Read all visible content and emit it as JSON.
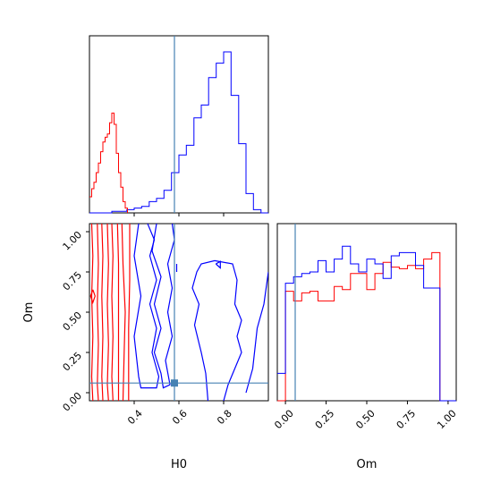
{
  "chart_data": {
    "type": "corner",
    "colors": {
      "series_a": "#ff0000",
      "series_b": "#0000ff",
      "truth": "#4682b4"
    },
    "truth": {
      "H0": 0.58,
      "Om": 0.06
    },
    "ranges": {
      "H0": [
        0.2,
        1.0
      ],
      "Om": [
        -0.05,
        1.05
      ]
    },
    "axes": {
      "H0": {
        "label": "H0",
        "ticks": [
          0.4,
          0.6,
          0.8
        ],
        "tick_labels": [
          "0.4",
          "0.6",
          "0.8"
        ]
      },
      "Om": {
        "label": "Om",
        "ticks": [
          0.0,
          0.25,
          0.5,
          0.75,
          1.0
        ],
        "tick_labels": [
          "0.00",
          "0.25",
          "0.50",
          "0.75",
          "1.00"
        ]
      }
    },
    "hist_H0": {
      "bin_edges": [
        0.2,
        0.233,
        0.267,
        0.3,
        0.333,
        0.367,
        0.4,
        0.433,
        0.467,
        0.5,
        0.533,
        0.567,
        0.6,
        0.633,
        0.667,
        0.7,
        0.733,
        0.767,
        0.8,
        0.833,
        0.867,
        0.9,
        0.933,
        0.967,
        1.0
      ],
      "series_a": [
        [
          0.2,
          0.1
        ],
        [
          0.21,
          0.15
        ],
        [
          0.22,
          0.19
        ],
        [
          0.23,
          0.25
        ],
        [
          0.24,
          0.31
        ],
        [
          0.25,
          0.38
        ],
        [
          0.26,
          0.44
        ],
        [
          0.27,
          0.47
        ],
        [
          0.28,
          0.49
        ],
        [
          0.29,
          0.56
        ],
        [
          0.3,
          0.62
        ],
        [
          0.31,
          0.55
        ],
        [
          0.32,
          0.37
        ],
        [
          0.33,
          0.25
        ],
        [
          0.34,
          0.16
        ],
        [
          0.35,
          0.07
        ],
        [
          0.36,
          0.03
        ],
        [
          0.37,
          0.0
        ]
      ],
      "series_b": [
        0.0,
        0.0,
        0.0,
        0.01,
        0.01,
        0.02,
        0.03,
        0.04,
        0.07,
        0.09,
        0.14,
        0.25,
        0.36,
        0.42,
        0.59,
        0.67,
        0.84,
        0.93,
        1.0,
        0.73,
        0.43,
        0.12,
        0.02,
        0.0
      ]
    },
    "hist_Om": {
      "bin_edges": [
        -0.05,
        0.0,
        0.05,
        0.1,
        0.15,
        0.2,
        0.25,
        0.3,
        0.35,
        0.4,
        0.45,
        0.5,
        0.55,
        0.6,
        0.65,
        0.7,
        0.75,
        0.8,
        0.85,
        0.9,
        0.95,
        1.0,
        1.05
      ],
      "series_a": [
        0.0,
        0.68,
        0.62,
        0.67,
        0.68,
        0.62,
        0.62,
        0.71,
        0.69,
        0.79,
        0.79,
        0.69,
        0.79,
        0.86,
        0.83,
        0.82,
        0.84,
        0.82,
        0.88,
        0.92,
        0.0,
        0.0
      ],
      "series_b": [
        0.17,
        0.73,
        0.77,
        0.79,
        0.8,
        0.87,
        0.8,
        0.88,
        0.96,
        0.85,
        0.8,
        0.88,
        0.85,
        0.76,
        0.9,
        0.92,
        0.92,
        0.84,
        0.7,
        0.7,
        0.0,
        0.0
      ]
    },
    "contours_a": [
      [
        [
          0.21,
          1.05
        ],
        [
          0.215,
          0.85
        ],
        [
          0.21,
          0.6
        ],
        [
          0.215,
          0.35
        ],
        [
          0.21,
          0.1
        ],
        [
          0.215,
          -0.05
        ]
      ],
      [
        [
          0.235,
          1.05
        ],
        [
          0.24,
          0.8
        ],
        [
          0.235,
          0.55
        ],
        [
          0.24,
          0.3
        ],
        [
          0.235,
          0.05
        ],
        [
          0.24,
          -0.05
        ]
      ],
      [
        [
          0.255,
          1.05
        ],
        [
          0.26,
          0.85
        ],
        [
          0.255,
          0.6
        ],
        [
          0.26,
          0.35
        ],
        [
          0.255,
          0.1
        ],
        [
          0.26,
          -0.05
        ]
      ],
      [
        [
          0.28,
          1.05
        ],
        [
          0.285,
          0.8
        ],
        [
          0.28,
          0.55
        ],
        [
          0.285,
          0.3
        ],
        [
          0.28,
          0.05
        ],
        [
          0.285,
          -0.05
        ]
      ],
      [
        [
          0.3,
          1.05
        ],
        [
          0.305,
          0.85
        ],
        [
          0.3,
          0.6
        ],
        [
          0.305,
          0.35
        ],
        [
          0.3,
          0.1
        ],
        [
          0.305,
          -0.05
        ]
      ],
      [
        [
          0.325,
          1.05
        ],
        [
          0.33,
          0.8
        ],
        [
          0.33,
          0.55
        ],
        [
          0.33,
          0.3
        ],
        [
          0.33,
          0.05
        ],
        [
          0.33,
          -0.05
        ]
      ],
      [
        [
          0.345,
          1.05
        ],
        [
          0.35,
          0.8
        ],
        [
          0.36,
          0.5
        ],
        [
          0.355,
          0.25
        ],
        [
          0.35,
          -0.05
        ]
      ],
      [
        [
          0.38,
          1.05
        ],
        [
          0.38,
          0.7
        ],
        [
          0.375,
          0.4
        ],
        [
          0.375,
          0.1
        ],
        [
          0.375,
          -0.05
        ]
      ],
      [
        [
          0.215,
          0.64
        ],
        [
          0.225,
          0.6
        ],
        [
          0.215,
          0.56
        ],
        [
          0.205,
          0.6
        ],
        [
          0.215,
          0.64
        ]
      ]
    ],
    "contours_b": [
      [
        [
          0.42,
          1.05
        ],
        [
          0.4,
          0.85
        ],
        [
          0.43,
          0.6
        ],
        [
          0.4,
          0.35
        ],
        [
          0.42,
          0.1
        ],
        [
          0.43,
          0.03
        ],
        [
          0.5,
          0.03
        ],
        [
          0.51,
          0.1
        ],
        [
          0.48,
          0.25
        ],
        [
          0.5,
          0.4
        ],
        [
          0.47,
          0.55
        ],
        [
          0.5,
          0.7
        ],
        [
          0.47,
          0.85
        ],
        [
          0.49,
          0.95
        ],
        [
          0.46,
          1.05
        ]
      ],
      [
        [
          0.5,
          1.05
        ],
        [
          0.48,
          0.88
        ],
        [
          0.52,
          0.72
        ],
        [
          0.49,
          0.55
        ],
        [
          0.52,
          0.4
        ],
        [
          0.49,
          0.25
        ],
        [
          0.52,
          0.12
        ],
        [
          0.53,
          0.03
        ],
        [
          0.56,
          0.05
        ],
        [
          0.54,
          0.2
        ],
        [
          0.57,
          0.35
        ],
        [
          0.55,
          0.5
        ],
        [
          0.57,
          0.65
        ],
        [
          0.55,
          0.8
        ],
        [
          0.58,
          0.95
        ],
        [
          0.57,
          1.05
        ]
      ],
      [
        [
          0.73,
          -0.05
        ],
        [
          0.72,
          0.12
        ],
        [
          0.7,
          0.25
        ],
        [
          0.67,
          0.42
        ],
        [
          0.69,
          0.55
        ],
        [
          0.66,
          0.65
        ],
        [
          0.68,
          0.75
        ],
        [
          0.7,
          0.8
        ],
        [
          0.76,
          0.82
        ],
        [
          0.84,
          0.8
        ],
        [
          0.86,
          0.7
        ],
        [
          0.85,
          0.55
        ],
        [
          0.88,
          0.45
        ],
        [
          0.86,
          0.35
        ],
        [
          0.88,
          0.25
        ],
        [
          0.85,
          0.15
        ],
        [
          0.82,
          0.05
        ],
        [
          0.8,
          -0.05
        ]
      ],
      [
        [
          0.9,
          0.0
        ],
        [
          0.93,
          0.15
        ],
        [
          0.95,
          0.4
        ],
        [
          0.98,
          0.55
        ],
        [
          1.0,
          0.75
        ]
      ],
      [
        [
          0.59,
          0.8
        ],
        [
          0.59,
          0.75
        ]
      ],
      [
        [
          0.765,
          0.8
        ],
        [
          0.785,
          0.775
        ],
        [
          0.785,
          0.815
        ],
        [
          0.765,
          0.8
        ]
      ]
    ]
  }
}
